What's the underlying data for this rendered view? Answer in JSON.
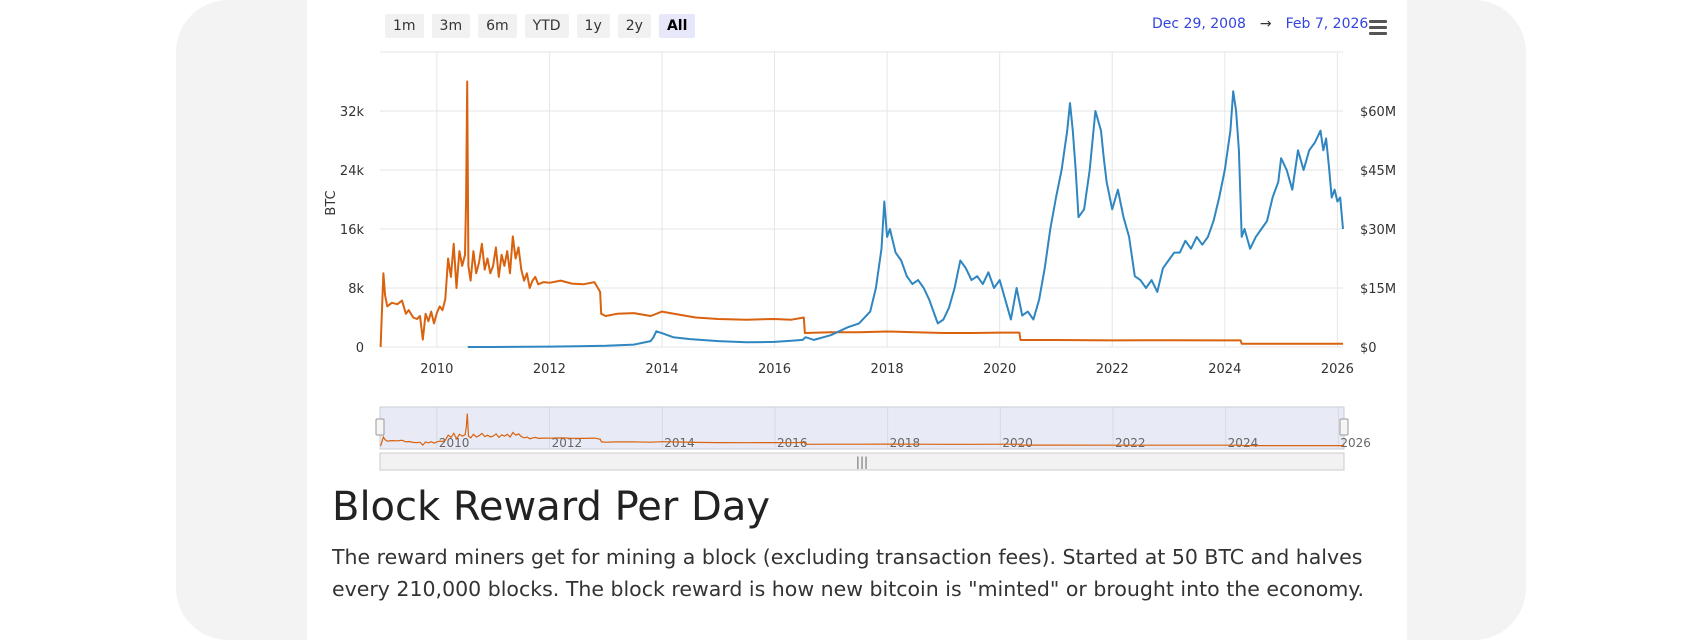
{
  "range_buttons": [
    {
      "label": "1m",
      "active": false
    },
    {
      "label": "3m",
      "active": false
    },
    {
      "label": "6m",
      "active": false
    },
    {
      "label": "YTD",
      "active": false
    },
    {
      "label": "1y",
      "active": false
    },
    {
      "label": "2y",
      "active": false
    },
    {
      "label": "All",
      "active": true
    }
  ],
  "date_range": {
    "from": "Dec 29, 2008",
    "arrow": "→",
    "to": "Feb 7, 2026"
  },
  "menu_icon": "hamburger-menu-icon",
  "section": {
    "title": "Block Reward Per Day",
    "description": "The reward miners get for mining a block (excluding transaction fees). Started at 50 BTC and halves every 210,000 blocks. The block reward is how new bitcoin is \"minted\" or brought into the economy."
  },
  "chart_data": {
    "type": "line",
    "title": "",
    "ylabel": "BTC",
    "y2label": "",
    "xlim": [
      2008.99,
      2026.1
    ],
    "ylim": [
      0,
      40000
    ],
    "y2lim": [
      0,
      75000000
    ],
    "x_ticks": [
      "2010",
      "2012",
      "2014",
      "2016",
      "2018",
      "2020",
      "2022",
      "2024",
      "2026"
    ],
    "y_ticks": [
      "0",
      "8k",
      "16k",
      "24k",
      "32k"
    ],
    "y2_ticks": [
      "$0",
      "$15M",
      "$30M",
      "$45M",
      "$60M"
    ],
    "grid": true,
    "legend": "none",
    "navigator_ticks": [
      "2010",
      "2012",
      "2014",
      "2016",
      "2018",
      "2020",
      "2022",
      "2024",
      "2026"
    ],
    "colors": {
      "btc": "#d9620f",
      "usd": "#2f86c0",
      "grid": "#e6e6e6",
      "navigator_bg": "#e8ebf5"
    },
    "series": [
      {
        "axis": "left",
        "color": "#d9620f",
        "x": [
          2009.0,
          2009.02,
          2009.05,
          2009.08,
          2009.12,
          2009.2,
          2009.3,
          2009.38,
          2009.45,
          2009.5,
          2009.58,
          2009.65,
          2009.7,
          2009.75,
          2009.8,
          2009.85,
          2009.9,
          2009.95,
          2010.0,
          2010.05,
          2010.1,
          2010.15,
          2010.2,
          2010.25,
          2010.3,
          2010.35,
          2010.4,
          2010.45,
          2010.5,
          2010.52,
          2010.54,
          2010.56,
          2010.6,
          2010.65,
          2010.7,
          2010.75,
          2010.8,
          2010.85,
          2010.9,
          2010.95,
          2011.0,
          2011.05,
          2011.1,
          2011.15,
          2011.2,
          2011.25,
          2011.3,
          2011.35,
          2011.4,
          2011.45,
          2011.5,
          2011.55,
          2011.6,
          2011.65,
          2011.7,
          2011.75,
          2011.8,
          2011.9,
          2012.0,
          2012.2,
          2012.4,
          2012.6,
          2012.8,
          2012.9,
          2012.92,
          2013.0,
          2013.2,
          2013.5,
          2013.8,
          2014.0,
          2014.3,
          2014.6,
          2015.0,
          2015.5,
          2016.0,
          2016.3,
          2016.52,
          2016.54,
          2017.0,
          2017.5,
          2018.0,
          2018.5,
          2019.0,
          2019.5,
          2020.0,
          2020.35,
          2020.37,
          2021.0,
          2022.0,
          2023.0,
          2024.0,
          2024.28,
          2024.3,
          2025.0,
          2026.1
        ],
        "y": [
          0,
          4000,
          10000,
          7000,
          5500,
          6000,
          5800,
          6300,
          4500,
          5000,
          4000,
          3800,
          4200,
          1000,
          4500,
          3500,
          4800,
          3200,
          4600,
          5500,
          5000,
          6500,
          12000,
          9500,
          14000,
          8000,
          13000,
          11000,
          12500,
          20000,
          36000,
          11000,
          9000,
          13000,
          10000,
          11500,
          14000,
          10500,
          12000,
          10000,
          11000,
          13500,
          9500,
          12500,
          11000,
          13000,
          10000,
          15000,
          12000,
          13500,
          10500,
          9000,
          10000,
          8000,
          9000,
          9500,
          8500,
          8800,
          8700,
          9000,
          8600,
          8500,
          8800,
          7500,
          4500,
          4200,
          4500,
          4600,
          4200,
          4800,
          4400,
          4000,
          3800,
          3700,
          3800,
          3700,
          4000,
          1900,
          2000,
          2000,
          2100,
          2000,
          1900,
          1900,
          1950,
          1950,
          950,
          950,
          900,
          920,
          900,
          900,
          450,
          450,
          450
        ]
      },
      {
        "axis": "right",
        "color": "#2f86c0",
        "x": [
          2010.55,
          2011.0,
          2012.0,
          2012.5,
          2013.0,
          2013.5,
          2013.8,
          2013.85,
          2013.9,
          2014.0,
          2014.2,
          2014.5,
          2015.0,
          2015.5,
          2016.0,
          2016.3,
          2016.5,
          2016.55,
          2016.7,
          2017.0,
          2017.3,
          2017.5,
          2017.7,
          2017.8,
          2017.9,
          2017.95,
          2018.0,
          2018.05,
          2018.15,
          2018.25,
          2018.35,
          2018.45,
          2018.55,
          2018.65,
          2018.75,
          2018.85,
          2018.9,
          2019.0,
          2019.1,
          2019.2,
          2019.3,
          2019.4,
          2019.5,
          2019.6,
          2019.7,
          2019.8,
          2019.9,
          2020.0,
          2020.1,
          2020.2,
          2020.3,
          2020.4,
          2020.5,
          2020.6,
          2020.7,
          2020.8,
          2020.9,
          2021.0,
          2021.1,
          2021.2,
          2021.25,
          2021.3,
          2021.35,
          2021.4,
          2021.5,
          2021.6,
          2021.7,
          2021.8,
          2021.85,
          2021.9,
          2022.0,
          2022.1,
          2022.2,
          2022.3,
          2022.4,
          2022.5,
          2022.6,
          2022.7,
          2022.8,
          2022.9,
          2023.0,
          2023.1,
          2023.2,
          2023.3,
          2023.4,
          2023.5,
          2023.6,
          2023.7,
          2023.8,
          2023.9,
          2024.0,
          2024.1,
          2024.15,
          2024.2,
          2024.25,
          2024.3,
          2024.35,
          2024.45,
          2024.55,
          2024.65,
          2024.75,
          2024.85,
          2024.95,
          2025.0,
          2025.1,
          2025.2,
          2025.3,
          2025.4,
          2025.5,
          2025.6,
          2025.7,
          2025.75,
          2025.8,
          2025.85,
          2025.9,
          2025.95,
          2026.0,
          2026.05,
          2026.1
        ],
        "y": [
          0,
          0,
          100000,
          200000,
          300000,
          600000,
          1500000,
          2500000,
          4000000,
          3500000,
          2500000,
          2000000,
          1500000,
          1200000,
          1300000,
          1600000,
          1800000,
          2500000,
          1800000,
          3000000,
          5000000,
          6000000,
          9000000,
          15000000,
          25000000,
          37000000,
          28000000,
          30000000,
          24000000,
          22000000,
          18000000,
          16000000,
          17000000,
          15000000,
          12000000,
          8000000,
          6000000,
          7000000,
          10000000,
          15000000,
          22000000,
          20000000,
          17000000,
          18000000,
          16000000,
          19000000,
          15000000,
          17000000,
          12000000,
          7000000,
          15000000,
          8000000,
          9000000,
          7000000,
          12000000,
          20000000,
          30000000,
          38000000,
          45000000,
          55000000,
          62000000,
          55000000,
          45000000,
          33000000,
          35000000,
          45000000,
          60000000,
          55000000,
          48000000,
          42000000,
          35000000,
          40000000,
          33000000,
          28000000,
          18000000,
          17000000,
          15000000,
          17000000,
          14000000,
          20000000,
          22000000,
          24000000,
          24000000,
          27000000,
          25000000,
          28000000,
          26000000,
          28000000,
          32000000,
          38000000,
          45000000,
          55000000,
          65000000,
          60000000,
          50000000,
          28000000,
          30000000,
          25000000,
          28000000,
          30000000,
          32000000,
          38000000,
          42000000,
          48000000,
          45000000,
          40000000,
          50000000,
          45000000,
          50000000,
          52000000,
          55000000,
          50000000,
          53000000,
          46000000,
          38000000,
          40000000,
          37000000,
          38000000,
          30000000
        ]
      }
    ]
  }
}
